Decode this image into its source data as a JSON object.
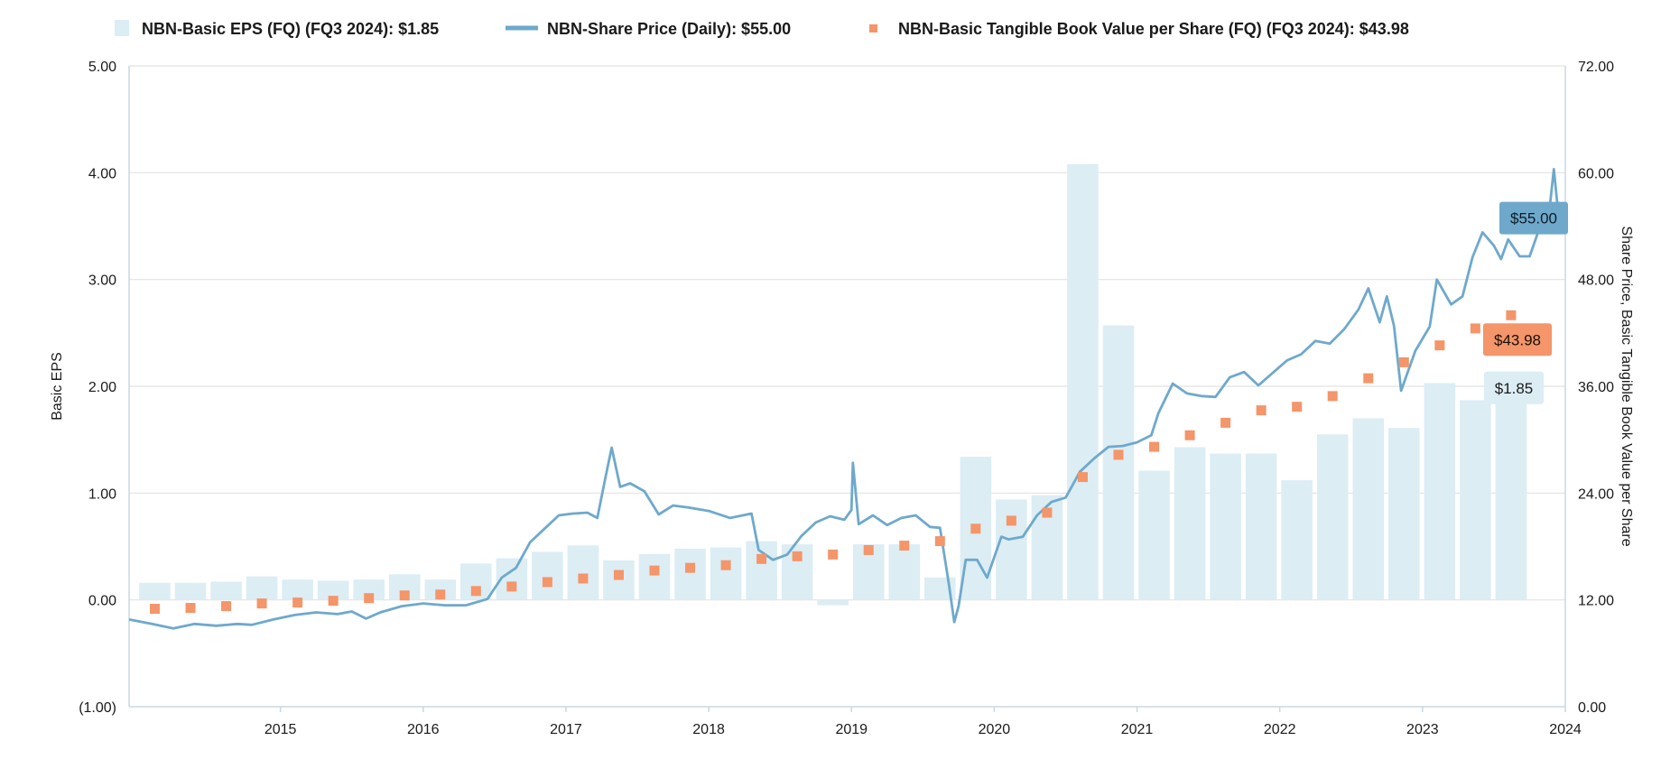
{
  "colors": {
    "eps": "#dcedf4",
    "price": "#6ea9cc",
    "tbv": "#f4956a",
    "grid": "#e2e2e2",
    "axis": "#c9d8e3",
    "text": "#1a1a1a"
  },
  "legend": [
    {
      "label": "NBN-Basic EPS (FQ) (FQ3 2024): $1.85",
      "symbol": "bar"
    },
    {
      "label": "NBN-Share Price (Daily): $55.00",
      "symbol": "line"
    },
    {
      "label": "NBN-Basic Tangible Book Value per Share (FQ) (FQ3 2024): $43.98",
      "symbol": "square"
    }
  ],
  "chart_data": {
    "type": "bar",
    "title": "",
    "ylabel": "Basic EPS",
    "y2label": "Share Price, Basic Tangible Book Value per Share",
    "ylim": [
      -1,
      5
    ],
    "y2lim": [
      0,
      72
    ],
    "xlim": [
      2014.44,
      2024.5
    ],
    "yticks": [
      "(1.00)",
      "0.00",
      "1.00",
      "2.00",
      "3.00",
      "4.00",
      "5.00"
    ],
    "y2ticks": [
      "0.00",
      "12.00",
      "24.00",
      "36.00",
      "48.00",
      "60.00",
      "72.00"
    ],
    "xticks": [
      "2015",
      "2016",
      "2017",
      "2018",
      "2019",
      "2020",
      "2021",
      "2022",
      "2023",
      "2024"
    ],
    "grid": true,
    "legend_position": "top",
    "series": [
      {
        "name": "NBN-Basic EPS (FQ) (FQ3 2024): $1.85",
        "type": "bar",
        "axis": "left",
        "x": [
          2014.62,
          2014.87,
          2015.12,
          2015.37,
          2015.62,
          2015.87,
          2016.12,
          2016.37,
          2016.62,
          2016.87,
          2017.12,
          2017.37,
          2017.62,
          2017.87,
          2018.12,
          2018.37,
          2018.62,
          2018.87,
          2019.12,
          2019.37,
          2019.62,
          2019.87,
          2020.12,
          2020.37,
          2020.62,
          2020.87,
          2021.12,
          2021.37,
          2021.62,
          2021.87,
          2022.12,
          2022.37,
          2022.62,
          2022.87,
          2023.12,
          2023.37,
          2023.62,
          2023.87,
          2024.12
        ],
        "values": [
          0.16,
          0.16,
          0.17,
          0.22,
          0.19,
          0.18,
          0.19,
          0.24,
          0.19,
          0.34,
          0.39,
          0.45,
          0.51,
          0.37,
          0.43,
          0.48,
          0.49,
          0.55,
          0.52,
          -0.05,
          0.52,
          0.52,
          0.21,
          1.34,
          0.94,
          0.98,
          4.08,
          2.57,
          1.21,
          1.43,
          1.37,
          1.37,
          1.12,
          1.55,
          1.7,
          1.61,
          2.03,
          1.87,
          1.85
        ]
      },
      {
        "name": "NBN-Share Price (Daily): $55.00",
        "type": "line",
        "axis": "right",
        "x": [
          2014.44,
          2014.6,
          2014.75,
          2014.9,
          2015.05,
          2015.2,
          2015.3,
          2015.45,
          2015.6,
          2015.75,
          2015.9,
          2016.0,
          2016.1,
          2016.2,
          2016.35,
          2016.5,
          2016.65,
          2016.8,
          2016.95,
          2017.05,
          2017.15,
          2017.25,
          2017.35,
          2017.45,
          2017.55,
          2017.65,
          2017.72,
          2017.78,
          2017.82,
          2017.88,
          2017.95,
          2018.05,
          2018.15,
          2018.25,
          2018.35,
          2018.5,
          2018.65,
          2018.8,
          2018.85,
          2018.95,
          2019.05,
          2019.15,
          2019.25,
          2019.35,
          2019.45,
          2019.5,
          2019.51,
          2019.55,
          2019.65,
          2019.75,
          2019.85,
          2019.95,
          2020.05,
          2020.12,
          2020.18,
          2020.22,
          2020.25,
          2020.3,
          2020.38,
          2020.45,
          2020.55,
          2020.6,
          2020.7,
          2020.8,
          2020.9,
          2021.0,
          2021.1,
          2021.2,
          2021.3,
          2021.4,
          2021.5,
          2021.6,
          2021.65,
          2021.75,
          2021.85,
          2021.95,
          2022.05,
          2022.15,
          2022.25,
          2022.35,
          2022.45,
          2022.55,
          2022.65,
          2022.75,
          2022.85,
          2022.95,
          2023.05,
          2023.12,
          2023.2,
          2023.25,
          2023.3,
          2023.35,
          2023.45,
          2023.55,
          2023.6,
          2023.7,
          2023.78,
          2023.85,
          2023.92,
          2024.0,
          2024.05,
          2024.1,
          2024.18,
          2024.25,
          2024.32,
          2024.38,
          2024.42,
          2024.45,
          2024.5
        ],
        "values": [
          9.8,
          9.3,
          8.8,
          9.3,
          9.1,
          9.3,
          9.2,
          9.8,
          10.3,
          10.6,
          10.4,
          10.7,
          9.9,
          10.6,
          11.3,
          11.6,
          11.4,
          11.4,
          12.1,
          14.5,
          15.6,
          18.5,
          20.0,
          21.5,
          21.7,
          21.8,
          21.2,
          26.0,
          29.1,
          24.7,
          25.1,
          24.2,
          21.6,
          22.6,
          22.4,
          22.0,
          21.2,
          21.7,
          17.6,
          16.5,
          17.1,
          19.2,
          20.7,
          21.4,
          21.0,
          22.1,
          27.4,
          20.5,
          21.5,
          20.4,
          21.2,
          21.5,
          20.2,
          20.1,
          14.0,
          9.5,
          11.3,
          16.5,
          16.5,
          14.5,
          19.1,
          18.8,
          19.1,
          21.5,
          23.0,
          23.5,
          26.4,
          27.9,
          29.2,
          29.3,
          29.7,
          30.5,
          33.0,
          36.3,
          35.2,
          34.9,
          34.8,
          37.0,
          37.6,
          36.1,
          37.5,
          38.9,
          39.6,
          41.1,
          40.8,
          42.4,
          44.6,
          47.0,
          43.2,
          46.1,
          42.8,
          35.5,
          40.0,
          42.7,
          48.0,
          45.2,
          46.1,
          50.5,
          53.3,
          51.8,
          50.3,
          52.5,
          50.6,
          50.6,
          53.8,
          54.5,
          60.4,
          55.5,
          55.0
        ]
      },
      {
        "name": "NBN-Basic Tangible Book Value per Share (FQ) (FQ3 2024): $43.98",
        "type": "scatter",
        "axis": "right",
        "x": [
          2014.62,
          2014.87,
          2015.12,
          2015.37,
          2015.62,
          2015.87,
          2016.12,
          2016.37,
          2016.62,
          2016.87,
          2017.12,
          2017.37,
          2017.62,
          2017.87,
          2018.12,
          2018.37,
          2018.62,
          2018.87,
          2019.12,
          2019.37,
          2019.62,
          2019.87,
          2020.12,
          2020.37,
          2020.62,
          2020.87,
          2021.12,
          2021.37,
          2021.62,
          2021.87,
          2022.12,
          2022.37,
          2022.62,
          2022.87,
          2023.12,
          2023.37,
          2023.62,
          2023.87,
          2024.12
        ],
        "values": [
          11.0,
          11.1,
          11.3,
          11.6,
          11.7,
          11.9,
          12.2,
          12.5,
          12.6,
          13.0,
          13.5,
          14.0,
          14.4,
          14.8,
          15.3,
          15.6,
          15.9,
          16.6,
          16.9,
          17.1,
          17.6,
          18.1,
          18.6,
          20.0,
          20.9,
          21.8,
          25.8,
          28.3,
          29.2,
          30.5,
          31.9,
          33.3,
          33.7,
          34.9,
          36.9,
          38.7,
          40.6,
          42.5,
          43.98
        ]
      }
    ],
    "callouts": [
      {
        "label": "$55.00",
        "series": 1,
        "value": 55.0
      },
      {
        "label": "$43.98",
        "series": 2,
        "value": 43.98
      },
      {
        "label": "$1.85",
        "series": 0,
        "value": 1.85
      }
    ]
  }
}
